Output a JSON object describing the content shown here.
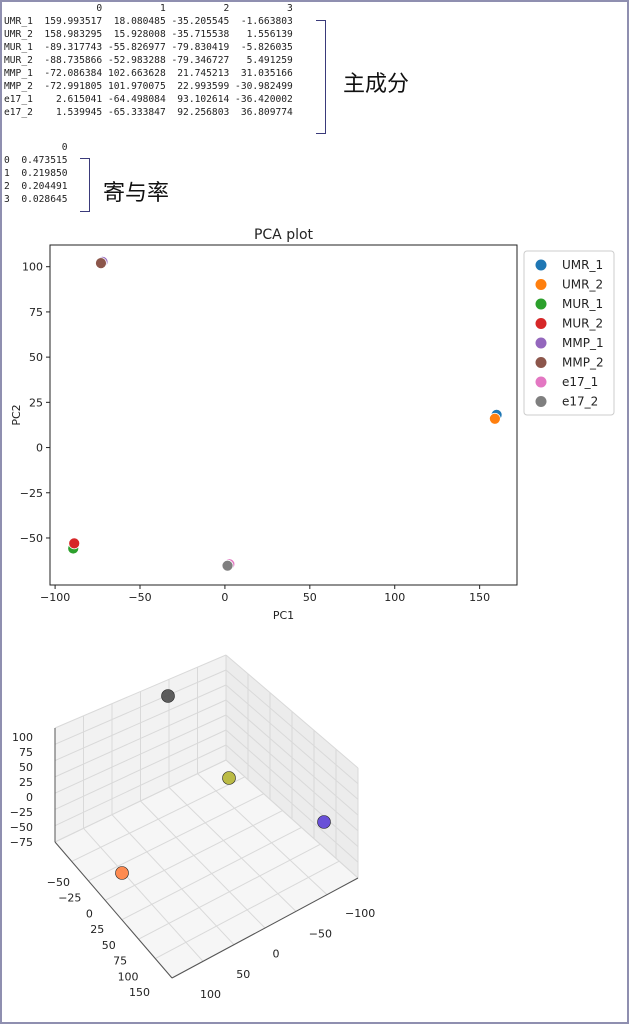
{
  "components_table": {
    "header": [
      "0",
      "1",
      "2",
      "3"
    ],
    "rows": [
      {
        "label": "UMR_1",
        "values": [
          "159.993517",
          "18.080485",
          "-35.205545",
          "-1.663803"
        ]
      },
      {
        "label": "UMR_2",
        "values": [
          "158.983295",
          "15.928008",
          "-35.715538",
          "1.556139"
        ]
      },
      {
        "label": "MUR_1",
        "values": [
          "-89.317743",
          "-55.826977",
          "-79.830419",
          "-5.826035"
        ]
      },
      {
        "label": "MUR_2",
        "values": [
          "-88.735866",
          "-52.983288",
          "-79.346727",
          "5.491259"
        ]
      },
      {
        "label": "MMP_1",
        "values": [
          "-72.086384",
          "102.663628",
          "21.745213",
          "31.035166"
        ]
      },
      {
        "label": "MMP_2",
        "values": [
          "-72.991805",
          "101.970075",
          "22.993599",
          "-30.982499"
        ]
      },
      {
        "label": "e17_1",
        "values": [
          "2.615041",
          "-64.498084",
          "93.102614",
          "-36.420002"
        ]
      },
      {
        "label": "e17_2",
        "values": [
          "1.539945",
          "-65.333847",
          "92.256803",
          "36.809774"
        ]
      }
    ],
    "annotation": "主成分"
  },
  "variance_table": {
    "header": "0",
    "rows": [
      {
        "label": "0",
        "value": "0.473515"
      },
      {
        "label": "1",
        "value": "0.219850"
      },
      {
        "label": "2",
        "value": "0.204491"
      },
      {
        "label": "3",
        "value": "0.028645"
      }
    ],
    "annotation": "寄与率"
  },
  "chart_data": [
    {
      "type": "scatter",
      "title": "PCA plot",
      "xlabel": "PC1",
      "ylabel": "PC2",
      "xlim": [
        -103,
        172
      ],
      "ylim": [
        -76,
        112
      ],
      "xticks": [
        -100,
        -50,
        0,
        50,
        100,
        150
      ],
      "yticks": [
        100,
        75,
        50,
        25,
        0,
        -25,
        -50
      ],
      "grid": false,
      "legend_position": "outside-right",
      "series": [
        {
          "name": "UMR_1",
          "color": "#1f77b4",
          "x": 159.99,
          "y": 18.08
        },
        {
          "name": "UMR_2",
          "color": "#ff7f0e",
          "x": 158.98,
          "y": 15.93
        },
        {
          "name": "MUR_1",
          "color": "#2ca02c",
          "x": -89.32,
          "y": -55.83
        },
        {
          "name": "MUR_2",
          "color": "#d62728",
          "x": -88.74,
          "y": -52.98
        },
        {
          "name": "MMP_1",
          "color": "#9467bd",
          "x": -72.09,
          "y": 102.66
        },
        {
          "name": "MMP_2",
          "color": "#8c564b",
          "x": -72.99,
          "y": 101.97
        },
        {
          "name": "e17_1",
          "color": "#e377c2",
          "x": 2.62,
          "y": -64.5
        },
        {
          "name": "e17_2",
          "color": "#7f7f7f",
          "x": 1.54,
          "y": -65.33
        }
      ]
    },
    {
      "type": "scatter3d",
      "title": "",
      "grid": true,
      "z_ticks": [
        "100",
        "75",
        "50",
        "25",
        "0",
        "−25",
        "−50",
        "−75"
      ],
      "left_axis_ticks": [
        "−50",
        "−25",
        "0",
        "25",
        "50",
        "75",
        "100",
        "150"
      ],
      "right_axis_ticks": [
        "−100",
        "−50",
        "0",
        "50",
        "100"
      ],
      "points": [
        {
          "color": "#4d4d4d",
          "label": "dark grey"
        },
        {
          "color": "#b5b532",
          "label": "olive"
        },
        {
          "color": "#5b3fd6",
          "label": "purple"
        },
        {
          "color": "#ff7f3f",
          "label": "orange"
        }
      ]
    }
  ]
}
